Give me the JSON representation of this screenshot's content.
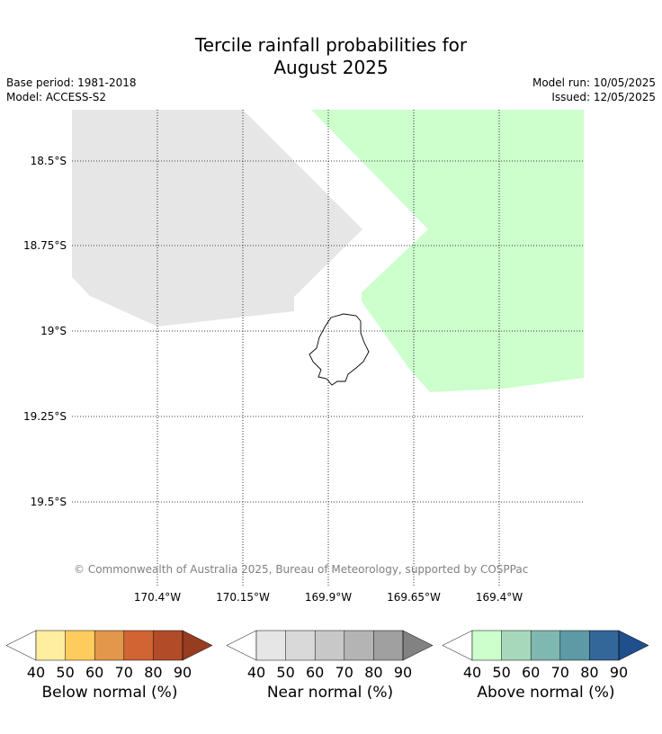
{
  "title": {
    "line1": "Tercile rainfall probabilities for",
    "line2": "August 2025"
  },
  "meta": {
    "base_period": "Base period: 1981-2018",
    "model": "Model: ACCESS-S2",
    "model_run": "Model run: 10/05/2025",
    "issued": "Issued: 12/05/2025"
  },
  "map": {
    "lat_labels": [
      "18.5°S",
      "18.75°S",
      "19°S",
      "19.25°S",
      "19.5°S"
    ],
    "lon_labels": [
      "170.4°W",
      "170.15°W",
      "169.9°W",
      "169.65°W",
      "169.4°W"
    ],
    "copyright": "© Commonwealth of Australia 2025, Bureau of Meteorology, supported by COSPPac",
    "region_colors": {
      "near_normal_40_50": "#e6e6e6",
      "above_normal_40_50": "#ccffcc"
    }
  },
  "legends": [
    {
      "label": "Below normal (%)",
      "ticks": [
        "40",
        "50",
        "60",
        "70",
        "80",
        "90"
      ],
      "colors": [
        "#ffffff",
        "#ffeda0",
        "#fecc5c",
        "#e3974a",
        "#d06432",
        "#b24c28",
        "#963c20"
      ]
    },
    {
      "label": "Near normal (%)",
      "ticks": [
        "40",
        "50",
        "60",
        "70",
        "80",
        "90"
      ],
      "colors": [
        "#ffffff",
        "#e6e6e6",
        "#d9d9d9",
        "#c8c8c8",
        "#b4b4b4",
        "#a0a0a0",
        "#828282"
      ]
    },
    {
      "label": "Above normal (%)",
      "ticks": [
        "40",
        "50",
        "60",
        "70",
        "80",
        "90"
      ],
      "colors": [
        "#ffffff",
        "#ccffcc",
        "#a7d8bb",
        "#7fb8b0",
        "#5c9aa6",
        "#336699",
        "#1f4f8c"
      ]
    }
  ]
}
